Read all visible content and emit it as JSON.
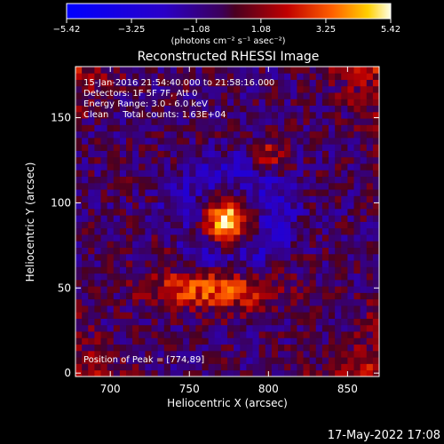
{
  "colorbar": {
    "tick_labels": [
      "−5.42",
      "−3.25",
      "−1.08",
      "1.08",
      "3.25",
      "5.42"
    ],
    "tick_values": [
      -5.42,
      -3.25,
      -1.08,
      1.08,
      3.25,
      5.42
    ],
    "range": [
      -5.42,
      5.42
    ],
    "unit_label": "(photons cm⁻² s⁻¹ asec⁻²)"
  },
  "chart_data": {
    "type": "heatmap",
    "title": "Reconstructed RHESSI Image",
    "xlabel": "Heliocentric X (arcsec)",
    "ylabel": "Heliocentric Y (arcsec)",
    "xlim": [
      678,
      870
    ],
    "ylim": [
      -2,
      180
    ],
    "x_ticks": [
      700,
      750,
      800,
      850
    ],
    "y_ticks": [
      0,
      50,
      100,
      150
    ],
    "annotations": [
      "15-Jan-2016 21:54:40.000 to 21:58:16.000",
      "Detectors: 1F 5F 7F, Att 0",
      "Energy Range: 3.0 - 6.0 keV",
      "Clean     Total counts: 1.63E+04"
    ],
    "peak_label": "Position of Peak = [774,89]",
    "peak": [
      774,
      89
    ],
    "sources": [
      {
        "x": 774,
        "y": 90,
        "sigma": 9,
        "amp": 5.4
      },
      {
        "x": 765,
        "y": 50,
        "sigma_x": 28,
        "sigma_y": 9,
        "amp": 3.6
      },
      {
        "x": 800,
        "y": 128,
        "sigma": 7,
        "amp": 2.2
      },
      {
        "x": 740,
        "y": 80,
        "sigma": 10,
        "amp": 1.2
      }
    ]
  },
  "timestamp": "17-May-2022 17:08"
}
